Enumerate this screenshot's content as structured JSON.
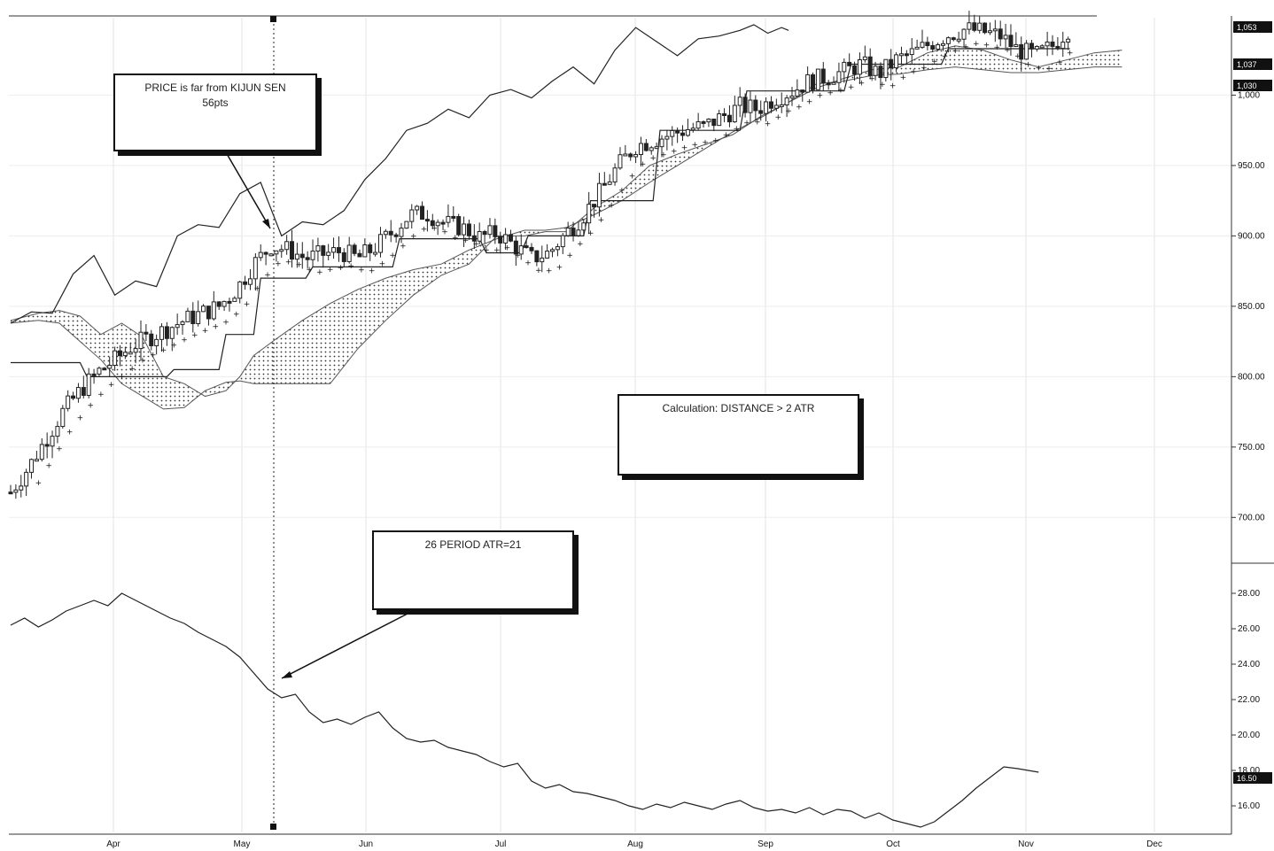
{
  "chart_data": [
    {
      "type": "candlestick",
      "title": "",
      "xlabel": "",
      "ylabel": "",
      "ylim": [
        670,
        1055
      ],
      "x_tick_labels": [
        "Apr",
        "May",
        "Jun",
        "Jul",
        "Aug",
        "Sep",
        "Oct",
        "Nov",
        "Dec"
      ],
      "y_tick_labels": [
        "700.00",
        "750.00",
        "800.00",
        "850.00",
        "900.00",
        "950.00",
        "1,000"
      ],
      "y_tick_values": [
        700,
        750,
        800,
        850,
        900,
        950,
        1000
      ],
      "price_badges": [
        "1,053",
        "1,037",
        "1,030"
      ],
      "ichimoku": {
        "price_close": [
          [
            0,
            718
          ],
          [
            5,
            735
          ],
          [
            10,
            755
          ],
          [
            15,
            775
          ],
          [
            20,
            790
          ],
          [
            25,
            803
          ],
          [
            30,
            812
          ],
          [
            35,
            822
          ],
          [
            40,
            828
          ],
          [
            45,
            834
          ],
          [
            50,
            840
          ],
          [
            55,
            845
          ],
          [
            60,
            850
          ],
          [
            65,
            862
          ],
          [
            70,
            880
          ],
          [
            75,
            893
          ],
          [
            80,
            890
          ],
          [
            85,
            884
          ],
          [
            90,
            887
          ],
          [
            95,
            889
          ],
          [
            100,
            884
          ],
          [
            105,
            892
          ],
          [
            110,
            903
          ],
          [
            115,
            915
          ],
          [
            120,
            916
          ],
          [
            125,
            909
          ],
          [
            130,
            906
          ],
          [
            135,
            899
          ],
          [
            140,
            902
          ],
          [
            145,
            893
          ],
          [
            150,
            884
          ],
          [
            155,
            888
          ],
          [
            160,
            902
          ],
          [
            165,
            915
          ],
          [
            170,
            932
          ],
          [
            175,
            950
          ],
          [
            180,
            964
          ],
          [
            185,
            968
          ],
          [
            190,
            972
          ],
          [
            195,
            976
          ],
          [
            200,
            978
          ],
          [
            205,
            985
          ],
          [
            210,
            992
          ],
          [
            215,
            990
          ],
          [
            220,
            998
          ],
          [
            225,
            1003
          ],
          [
            230,
            1010
          ],
          [
            235,
            1013
          ],
          [
            240,
            1017
          ],
          [
            245,
            1022
          ],
          [
            250,
            1015
          ],
          [
            255,
            1025
          ],
          [
            260,
            1030
          ],
          [
            265,
            1037
          ],
          [
            270,
            1043
          ],
          [
            275,
            1047
          ],
          [
            280,
            1045
          ],
          [
            285,
            1042
          ],
          [
            290,
            1032
          ],
          [
            295,
            1028
          ],
          [
            300,
            1035
          ],
          [
            305,
            1048
          ]
        ],
        "kijun_sen": [
          [
            0,
            810
          ],
          [
            20,
            810
          ],
          [
            22,
            800
          ],
          [
            45,
            800
          ],
          [
            47,
            805
          ],
          [
            60,
            805
          ],
          [
            62,
            830
          ],
          [
            70,
            830
          ],
          [
            72,
            870
          ],
          [
            85,
            870
          ],
          [
            87,
            878
          ],
          [
            110,
            878
          ],
          [
            112,
            898
          ],
          [
            135,
            898
          ],
          [
            137,
            888
          ],
          [
            147,
            888
          ],
          [
            149,
            900
          ],
          [
            165,
            900
          ],
          [
            167,
            925
          ],
          [
            185,
            925
          ],
          [
            187,
            975
          ],
          [
            210,
            975
          ],
          [
            212,
            1003
          ],
          [
            240,
            1003
          ],
          [
            242,
            1022
          ],
          [
            268,
            1022
          ],
          [
            270,
            1033
          ],
          [
            305,
            1033
          ]
        ],
        "chikou_span": [
          [
            0,
            838
          ],
          [
            6,
            846
          ],
          [
            12,
            845
          ],
          [
            18,
            873
          ],
          [
            24,
            886
          ],
          [
            30,
            858
          ],
          [
            36,
            868
          ],
          [
            42,
            864
          ],
          [
            48,
            900
          ],
          [
            54,
            908
          ],
          [
            60,
            906
          ],
          [
            66,
            930
          ],
          [
            72,
            938
          ],
          [
            78,
            900
          ],
          [
            84,
            910
          ],
          [
            90,
            908
          ],
          [
            96,
            918
          ],
          [
            102,
            940
          ],
          [
            108,
            955
          ],
          [
            114,
            975
          ],
          [
            120,
            980
          ],
          [
            126,
            990
          ],
          [
            132,
            984
          ],
          [
            138,
            1000
          ],
          [
            144,
            1004
          ],
          [
            150,
            998
          ],
          [
            156,
            1010
          ],
          [
            162,
            1020
          ],
          [
            168,
            1008
          ],
          [
            174,
            1032
          ],
          [
            180,
            1048
          ],
          [
            186,
            1038
          ],
          [
            192,
            1028
          ],
          [
            198,
            1040
          ],
          [
            204,
            1042
          ],
          [
            210,
            1046
          ],
          [
            214,
            1050
          ],
          [
            218,
            1044
          ],
          [
            222,
            1048
          ],
          [
            224,
            1046
          ]
        ],
        "senkou_span_a": [
          [
            0,
            840
          ],
          [
            8,
            845
          ],
          [
            14,
            847
          ],
          [
            20,
            843
          ],
          [
            26,
            830
          ],
          [
            32,
            838
          ],
          [
            38,
            828
          ],
          [
            44,
            800
          ],
          [
            50,
            795
          ],
          [
            56,
            786
          ],
          [
            62,
            790
          ],
          [
            66,
            800
          ],
          [
            70,
            815
          ],
          [
            76,
            826
          ],
          [
            84,
            840
          ],
          [
            92,
            852
          ],
          [
            100,
            862
          ],
          [
            108,
            870
          ],
          [
            116,
            876
          ],
          [
            124,
            880
          ],
          [
            132,
            890
          ],
          [
            140,
            898
          ],
          [
            148,
            904
          ],
          [
            154,
            904
          ],
          [
            160,
            906
          ],
          [
            168,
            915
          ],
          [
            176,
            925
          ],
          [
            184,
            938
          ],
          [
            192,
            950
          ],
          [
            200,
            962
          ],
          [
            208,
            974
          ],
          [
            216,
            984
          ],
          [
            224,
            995
          ],
          [
            232,
            1005
          ],
          [
            240,
            1012
          ],
          [
            248,
            1018
          ],
          [
            256,
            1020
          ],
          [
            264,
            1030
          ],
          [
            272,
            1035
          ],
          [
            280,
            1032
          ],
          [
            288,
            1025
          ],
          [
            296,
            1020
          ],
          [
            304,
            1025
          ],
          [
            312,
            1030
          ],
          [
            320,
            1032
          ]
        ],
        "senkou_span_b": [
          [
            0,
            838
          ],
          [
            8,
            840
          ],
          [
            14,
            838
          ],
          [
            20,
            825
          ],
          [
            26,
            812
          ],
          [
            32,
            795
          ],
          [
            38,
            786
          ],
          [
            44,
            777
          ],
          [
            50,
            778
          ],
          [
            56,
            790
          ],
          [
            62,
            796
          ],
          [
            66,
            797
          ],
          [
            70,
            795
          ],
          [
            76,
            795
          ],
          [
            84,
            795
          ],
          [
            92,
            795
          ],
          [
            100,
            820
          ],
          [
            108,
            840
          ],
          [
            116,
            858
          ],
          [
            124,
            872
          ],
          [
            132,
            880
          ],
          [
            140,
            900
          ],
          [
            148,
            900
          ],
          [
            154,
            903
          ],
          [
            160,
            903
          ],
          [
            168,
            920
          ],
          [
            176,
            932
          ],
          [
            184,
            950
          ],
          [
            192,
            958
          ],
          [
            200,
            965
          ],
          [
            208,
            972
          ],
          [
            216,
            985
          ],
          [
            224,
            995
          ],
          [
            232,
            1008
          ],
          [
            240,
            1010
          ],
          [
            248,
            1014
          ],
          [
            256,
            1015
          ],
          [
            264,
            1018
          ],
          [
            272,
            1020
          ],
          [
            280,
            1018
          ],
          [
            288,
            1016
          ],
          [
            296,
            1016
          ],
          [
            304,
            1018
          ],
          [
            312,
            1020
          ],
          [
            320,
            1020
          ]
        ]
      }
    },
    {
      "type": "line",
      "title": "",
      "xlabel": "",
      "ylabel": "",
      "ylim": [
        14.5,
        29.5
      ],
      "y_tick_labels": [
        "16.00",
        "18.00",
        "20.00",
        "22.00",
        "24.00",
        "26.00",
        "28.00"
      ],
      "y_tick_values": [
        16,
        18,
        20,
        22,
        24,
        26,
        28
      ],
      "value_badge": "16.50",
      "series": [
        {
          "values": [
            [
              0,
              26.2
            ],
            [
              4,
              26.6
            ],
            [
              8,
              26.1
            ],
            [
              12,
              26.5
            ],
            [
              16,
              27.0
            ],
            [
              20,
              27.3
            ],
            [
              24,
              27.6
            ],
            [
              28,
              27.3
            ],
            [
              32,
              28.0
            ],
            [
              34,
              27.8
            ],
            [
              38,
              27.4
            ],
            [
              42,
              27.0
            ],
            [
              46,
              26.6
            ],
            [
              50,
              26.3
            ],
            [
              54,
              25.8
            ],
            [
              58,
              25.4
            ],
            [
              62,
              25.0
            ],
            [
              66,
              24.4
            ],
            [
              70,
              23.5
            ],
            [
              74,
              22.6
            ],
            [
              78,
              22.1
            ],
            [
              82,
              22.3
            ],
            [
              86,
              21.3
            ],
            [
              90,
              20.7
            ],
            [
              94,
              20.9
            ],
            [
              98,
              20.6
            ],
            [
              102,
              21.0
            ],
            [
              106,
              21.3
            ],
            [
              110,
              20.4
            ],
            [
              114,
              19.8
            ],
            [
              118,
              19.6
            ],
            [
              122,
              19.7
            ],
            [
              126,
              19.3
            ],
            [
              130,
              19.1
            ],
            [
              134,
              18.9
            ],
            [
              138,
              18.5
            ],
            [
              142,
              18.2
            ],
            [
              146,
              18.4
            ],
            [
              150,
              17.4
            ],
            [
              154,
              17.0
            ],
            [
              158,
              17.2
            ],
            [
              162,
              16.8
            ],
            [
              166,
              16.7
            ],
            [
              170,
              16.5
            ],
            [
              174,
              16.3
            ],
            [
              178,
              16.0
            ],
            [
              182,
              15.8
            ],
            [
              186,
              16.1
            ],
            [
              190,
              15.9
            ],
            [
              194,
              16.2
            ],
            [
              198,
              16.0
            ],
            [
              202,
              15.8
            ],
            [
              206,
              16.1
            ],
            [
              210,
              16.3
            ],
            [
              214,
              15.9
            ],
            [
              218,
              15.7
            ],
            [
              222,
              15.8
            ],
            [
              226,
              15.6
            ],
            [
              230,
              15.9
            ],
            [
              234,
              15.5
            ],
            [
              238,
              15.8
            ],
            [
              242,
              15.7
            ],
            [
              246,
              15.3
            ],
            [
              250,
              15.6
            ],
            [
              254,
              15.2
            ],
            [
              258,
              15.0
            ],
            [
              262,
              14.8
            ],
            [
              266,
              15.1
            ],
            [
              270,
              15.7
            ],
            [
              274,
              16.3
            ],
            [
              278,
              17.0
            ],
            [
              282,
              17.6
            ],
            [
              286,
              18.2
            ],
            [
              290,
              18.1
            ],
            [
              296,
              17.9
            ]
          ]
        }
      ]
    }
  ],
  "annotations": {
    "kijun_note_line1": "PRICE is far from KIJUN SEN",
    "kijun_note_line2": "56pts",
    "calc_note": "Calculation: DISTANCE > 2 ATR",
    "atr_note": "26 PERIOD ATR=21"
  }
}
